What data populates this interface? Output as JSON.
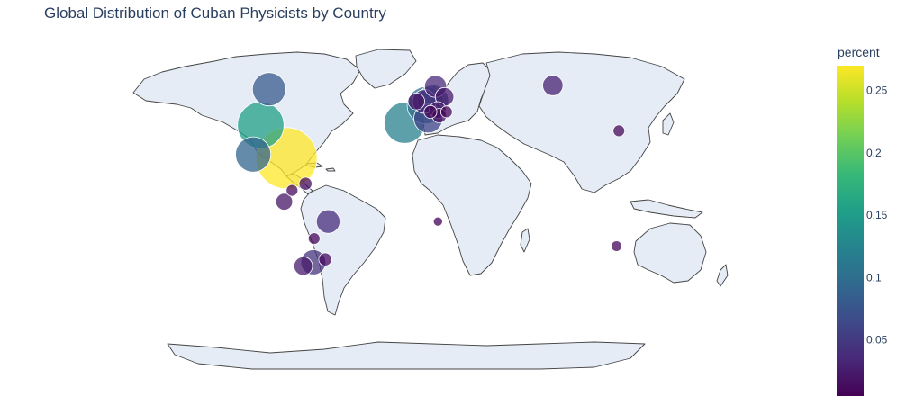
{
  "title": "Global Distribution of Cuban Physicists by Country",
  "colorbar": {
    "title": "percent",
    "ticks": [
      "0.05",
      "0.1",
      "0.15",
      "0.2",
      "0.25"
    ],
    "colorscale": [
      "#440154",
      "#482878",
      "#3e4989",
      "#31688e",
      "#26828e",
      "#1f9e89",
      "#35b779",
      "#6ece58",
      "#b5de2b",
      "#fde725"
    ],
    "range": [
      0.005,
      0.27
    ]
  },
  "chart_data": {
    "type": "bubble-map",
    "projection": "natural-earth",
    "value_field": "percent",
    "points": [
      {
        "lon": -80,
        "lat": 21.5,
        "percent": 0.27
      },
      {
        "lon": -100,
        "lat": 39,
        "percent": 0.155
      },
      {
        "lon": -102,
        "lat": 23.5,
        "percent": 0.09
      },
      {
        "lon": -98,
        "lat": 58,
        "percent": 0.08
      },
      {
        "lon": -3.5,
        "lat": 40.2,
        "percent": 0.12
      },
      {
        "lon": 11,
        "lat": 49.5,
        "percent": 0.1
      },
      {
        "lon": 16,
        "lat": 52,
        "percent": 0.07
      },
      {
        "lon": 12.5,
        "lat": 42.5,
        "percent": 0.06
      },
      {
        "lon": 10,
        "lat": 51.5,
        "percent": 0.04
      },
      {
        "lon": 4.5,
        "lat": 51.5,
        "percent": 0.02
      },
      {
        "lon": 18,
        "lat": 59.5,
        "percent": 0.035
      },
      {
        "lon": 24,
        "lat": 54,
        "percent": 0.025
      },
      {
        "lon": 19,
        "lat": 47,
        "percent": 0.02
      },
      {
        "lon": 20,
        "lat": 44,
        "percent": 0.015
      },
      {
        "lon": 14,
        "lat": 46,
        "percent": 0.012
      },
      {
        "lon": 25,
        "lat": 46,
        "percent": 0.01
      },
      {
        "lon": 100,
        "lat": 60,
        "percent": 0.03
      },
      {
        "lon": 139.5,
        "lat": 36,
        "percent": 0.01
      },
      {
        "lon": 135,
        "lat": -25,
        "percent": 0.008
      },
      {
        "lon": 18,
        "lat": -12,
        "percent": 0.006
      },
      {
        "lon": -74,
        "lat": 4.5,
        "percent": 0.01
      },
      {
        "lon": -66,
        "lat": 8,
        "percent": 0.012
      },
      {
        "lon": -78.5,
        "lat": -1.5,
        "percent": 0.02
      },
      {
        "lon": -52,
        "lat": -12,
        "percent": 0.04
      },
      {
        "lon": -62,
        "lat": -21,
        "percent": 0.01
      },
      {
        "lon": -64,
        "lat": -33.5,
        "percent": 0.045
      },
      {
        "lon": -71,
        "lat": -35.5,
        "percent": 0.025
      },
      {
        "lon": -56,
        "lat": -32,
        "percent": 0.012
      }
    ]
  }
}
